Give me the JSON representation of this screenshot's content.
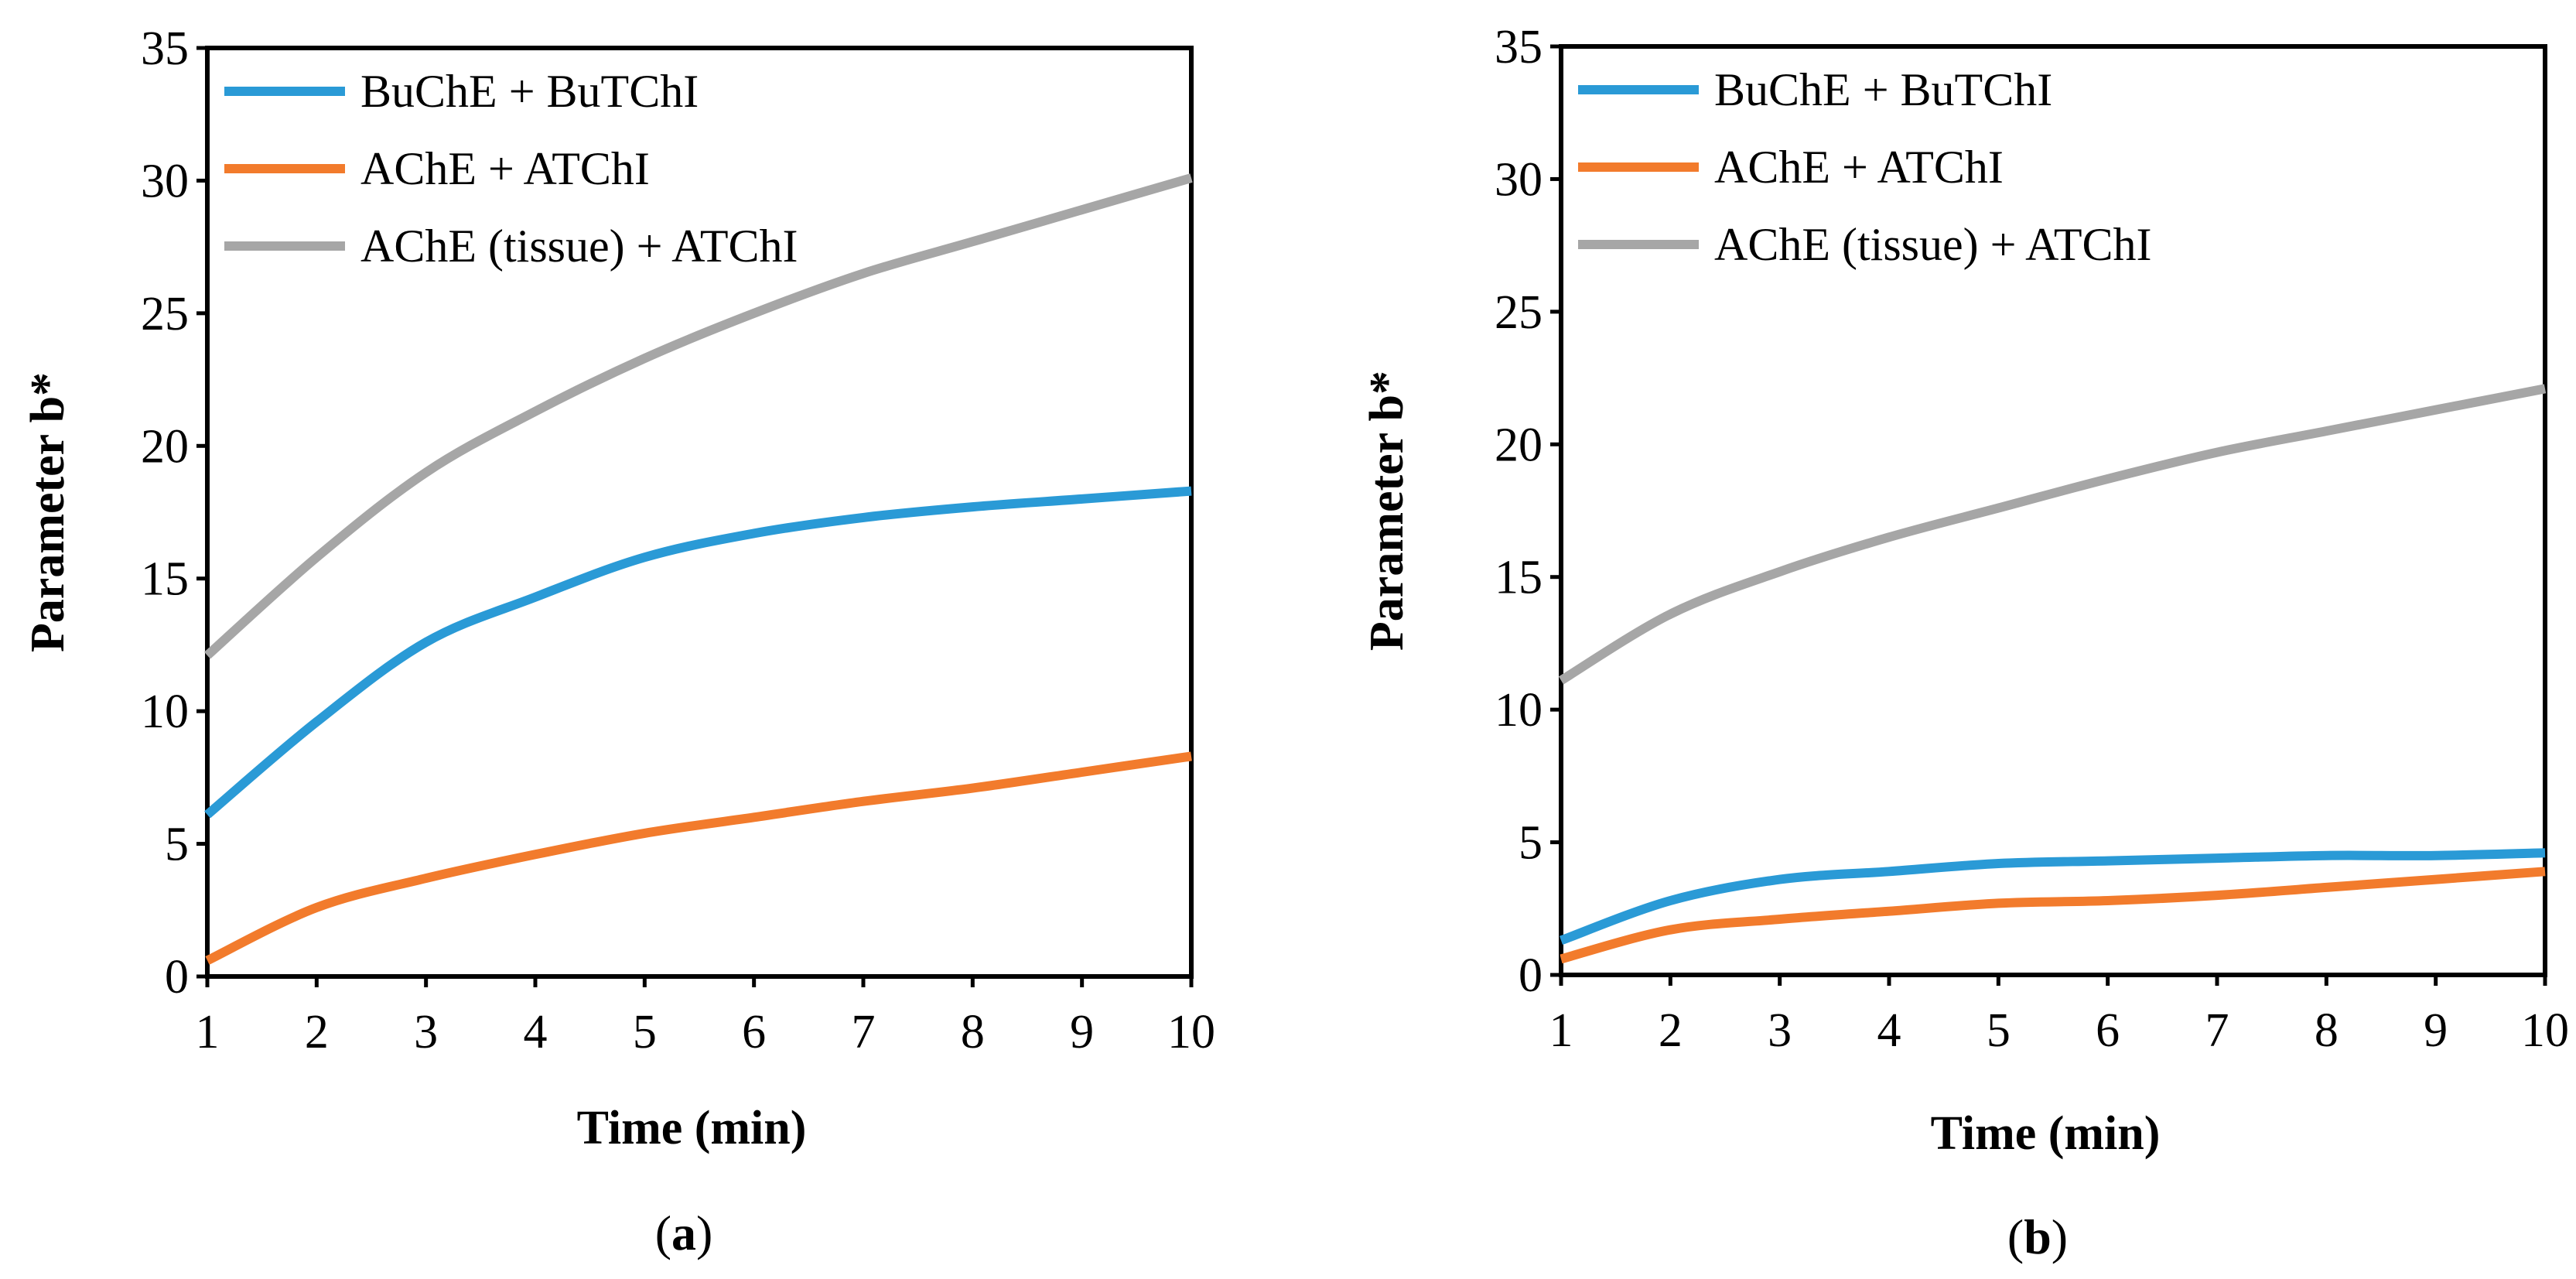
{
  "chart_data": [
    {
      "type": "line",
      "panel_label": "a",
      "xlabel": "Time (min)",
      "ylabel": "Parameter b*",
      "xlim": [
        1,
        10
      ],
      "ylim": [
        0,
        35
      ],
      "x_ticks": [
        1,
        2,
        3,
        4,
        5,
        6,
        7,
        8,
        9,
        10
      ],
      "y_ticks": [
        0,
        5,
        10,
        15,
        20,
        25,
        30,
        35
      ],
      "legend_position": "top-left",
      "x": [
        1,
        2,
        3,
        4,
        5,
        6,
        7,
        8,
        9,
        10
      ],
      "series": [
        {
          "name": "BuChE + BuTChI",
          "color": "#2a9ad6",
          "values": [
            6.1,
            9.6,
            12.6,
            14.3,
            15.8,
            16.7,
            17.3,
            17.7,
            18.0,
            18.3
          ]
        },
        {
          "name": "AChE + ATChI",
          "color": "#f27b2c",
          "values": [
            0.6,
            2.6,
            3.7,
            4.6,
            5.4,
            6.0,
            6.6,
            7.1,
            7.7,
            8.3
          ]
        },
        {
          "name": "AChE (tissue) + ATChI",
          "color": "#a6a6a6",
          "values": [
            12.1,
            15.8,
            19.0,
            21.3,
            23.3,
            25.0,
            26.5,
            27.7,
            28.9,
            30.1
          ]
        }
      ]
    },
    {
      "type": "line",
      "panel_label": "b",
      "xlabel": "Time (min)",
      "ylabel": "Parameter b*",
      "xlim": [
        1,
        10
      ],
      "ylim": [
        0,
        35
      ],
      "x_ticks": [
        1,
        2,
        3,
        4,
        5,
        6,
        7,
        8,
        9,
        10
      ],
      "y_ticks": [
        0,
        5,
        10,
        15,
        20,
        25,
        30,
        35
      ],
      "legend_position": "top-left",
      "x": [
        1,
        2,
        3,
        4,
        5,
        6,
        7,
        8,
        9,
        10
      ],
      "series": [
        {
          "name": "BuChE + BuTChI",
          "color": "#2a9ad6",
          "values": [
            1.3,
            2.8,
            3.6,
            3.9,
            4.2,
            4.3,
            4.4,
            4.5,
            4.5,
            4.6
          ]
        },
        {
          "name": "AChE + ATChI",
          "color": "#f27b2c",
          "values": [
            0.6,
            1.7,
            2.1,
            2.4,
            2.7,
            2.8,
            3.0,
            3.3,
            3.6,
            3.9
          ]
        },
        {
          "name": "AChE (tissue) + ATChI",
          "color": "#a6a6a6",
          "values": [
            11.1,
            13.6,
            15.2,
            16.5,
            17.6,
            18.7,
            19.7,
            20.5,
            21.3,
            22.1
          ]
        }
      ]
    }
  ]
}
